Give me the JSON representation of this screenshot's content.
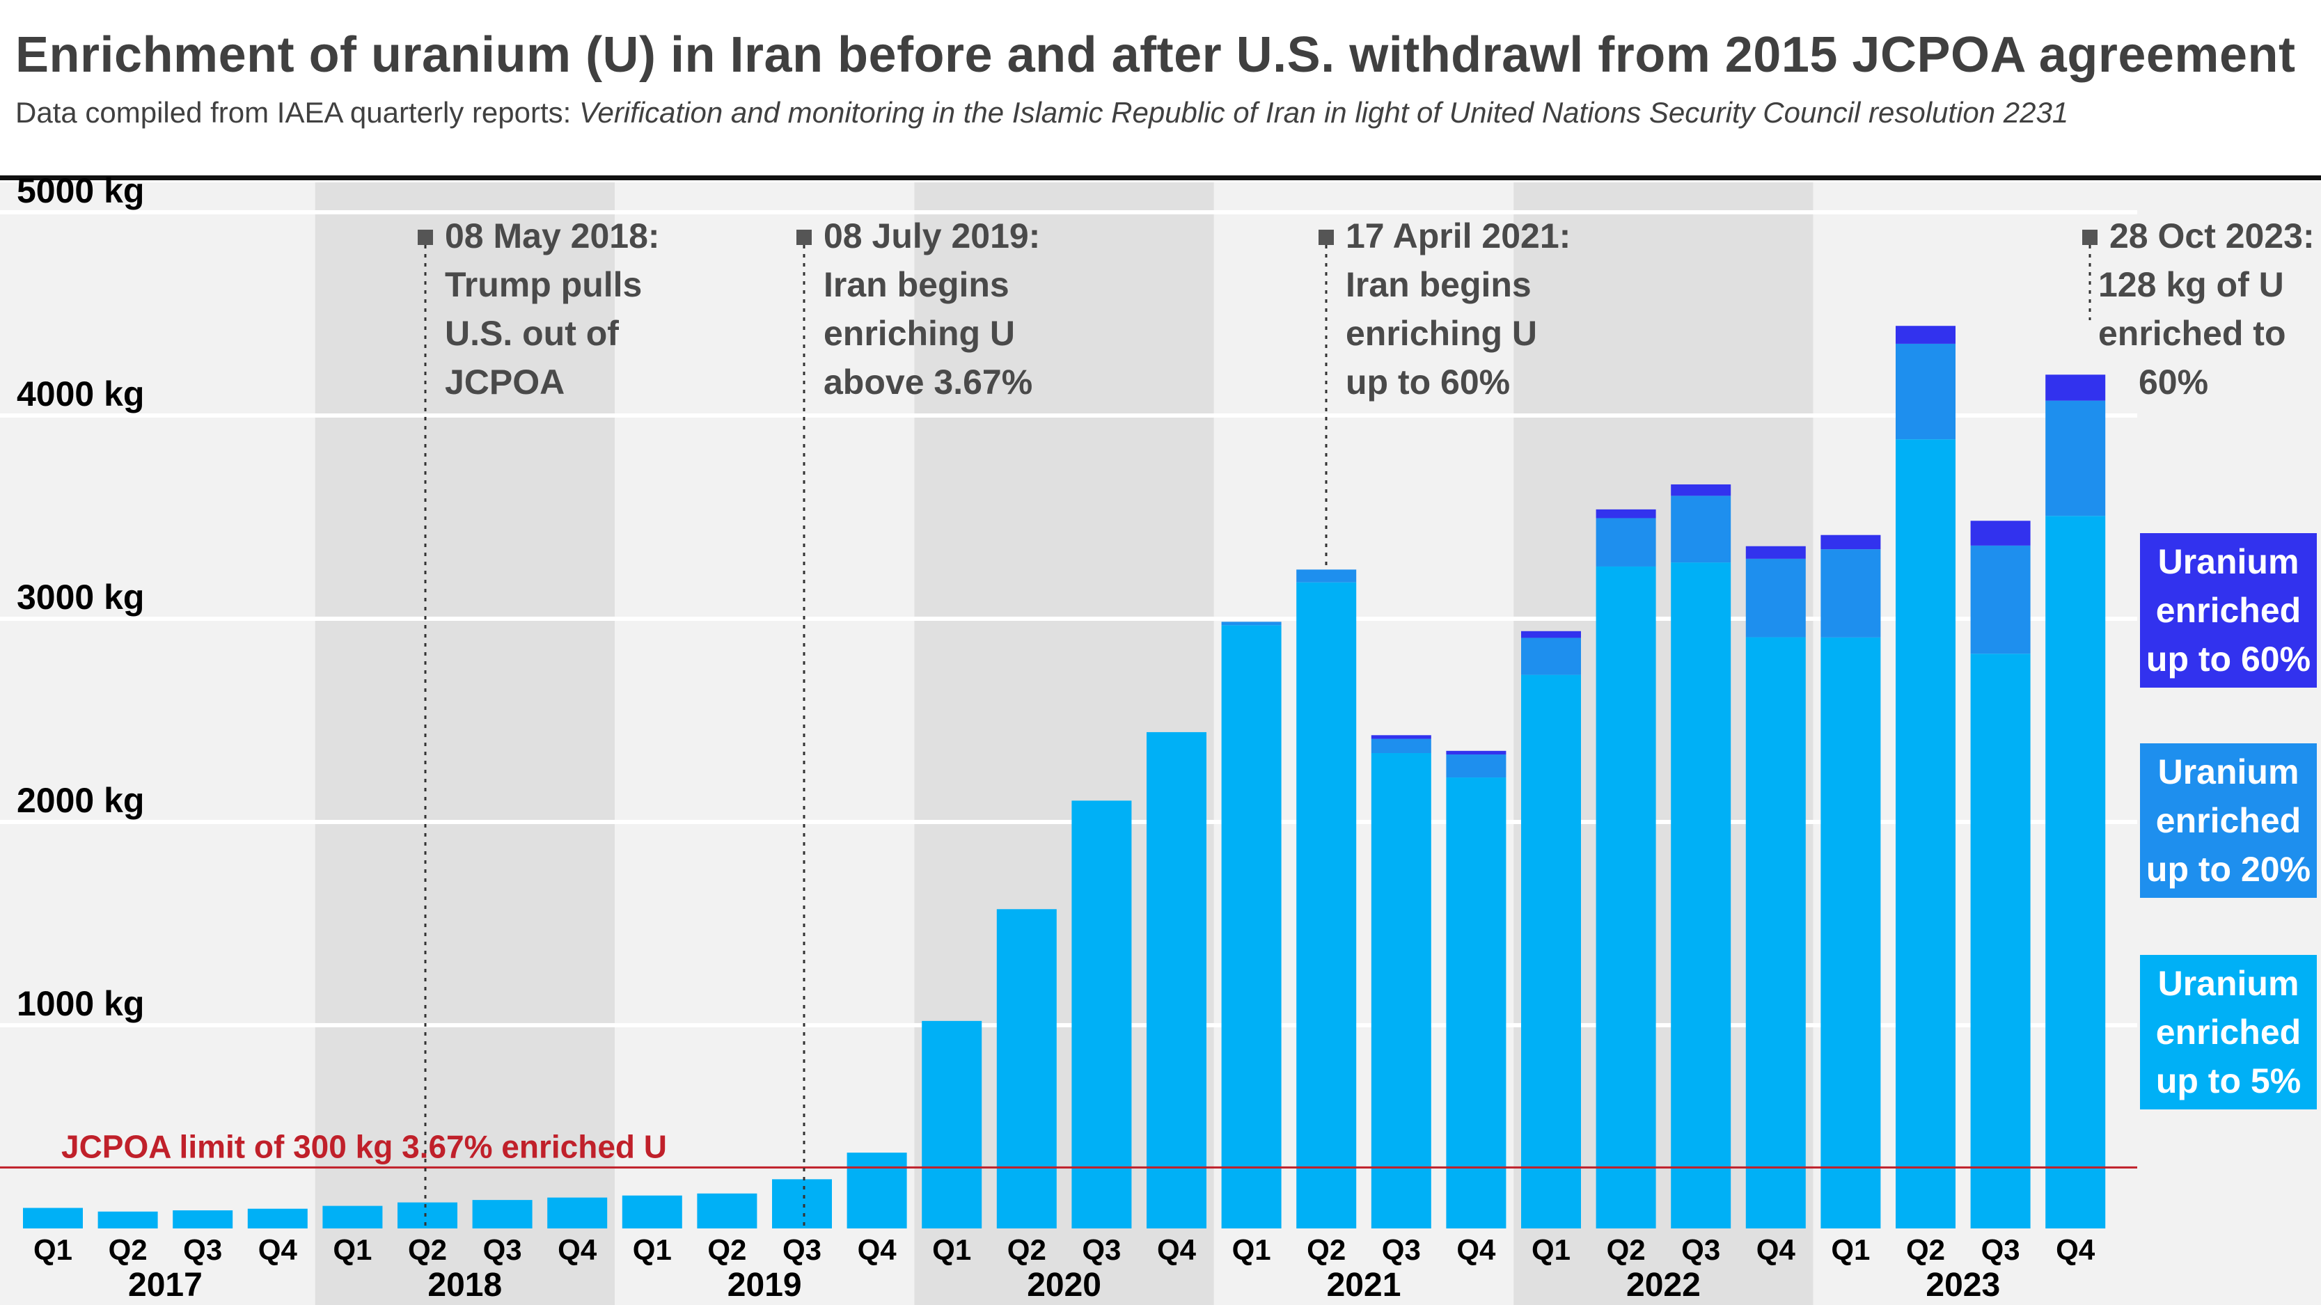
{
  "title": "Enrichment of uranium (U) in Iran before and after U.S. withdrawl from 2015 JCPOA agreement",
  "subtitle_prefix": "Data compiled from IAEA quarterly reports: ",
  "subtitle_italic": "Verification and monitoring in the Islamic Republic of Iran in light of United Nations Security Council resolution 2231",
  "colors": {
    "u5": "#00b0f6",
    "u20": "#1e8fee",
    "u60": "#3232ee",
    "limit": "#c0202a",
    "band_dark": "#e0e0e0",
    "band_light": "#f2f2f2",
    "axis_text": "#000000",
    "annotation_text": "#4a4a4a"
  },
  "legend": [
    {
      "label_lines": [
        "Uranium",
        "enriched",
        "up to 60%"
      ],
      "color": "#3232ee"
    },
    {
      "label_lines": [
        "Uranium",
        "enriched",
        "up to 20%"
      ],
      "color": "#1e8fee"
    },
    {
      "label_lines": [
        "Uranium",
        "enriched",
        "up to 5%"
      ],
      "color": "#00b0f6"
    }
  ],
  "chart_data": {
    "type": "bar",
    "stacked": true,
    "y_tick_labels": [
      "1000 kg",
      "2000 kg",
      "3000 kg",
      "4000 kg",
      "5000 kg"
    ],
    "y_ticks": [
      1000,
      2000,
      3000,
      4000,
      5000
    ],
    "ylim": [
      0,
      5150
    ],
    "grid": true,
    "years": [
      "2017",
      "2018",
      "2019",
      "2020",
      "2021",
      "2022",
      "2023"
    ],
    "categories": [
      "Q1",
      "Q2",
      "Q3",
      "Q4",
      "Q1",
      "Q2",
      "Q3",
      "Q4",
      "Q1",
      "Q2",
      "Q3",
      "Q4",
      "Q1",
      "Q2",
      "Q3",
      "Q4",
      "Q1",
      "Q2",
      "Q3",
      "Q4",
      "Q1",
      "Q2",
      "Q3",
      "Q4",
      "Q1",
      "Q2",
      "Q3",
      "Q4"
    ],
    "series": [
      {
        "name": "Uranium enriched up to 5%",
        "values": [
          101,
          83,
          89,
          97,
          111,
          128,
          140,
          152,
          162,
          172,
          242,
          373,
          1021,
          1571,
          2105,
          2442,
          2968,
          3179,
          2339,
          2219,
          2724,
          3257,
          3277,
          2909,
          2908,
          3883,
          2828,
          3506
        ]
      },
      {
        "name": "Uranium enriched up to 20%",
        "values": [
          0,
          0,
          0,
          0,
          0,
          0,
          0,
          0,
          0,
          0,
          0,
          0,
          0,
          0,
          0,
          0,
          17,
          63,
          70,
          113,
          182,
          238,
          328,
          386,
          434,
          470,
          532,
          567
        ]
      },
      {
        "name": "Uranium enriched up to 60%",
        "values": [
          0,
          0,
          0,
          0,
          0,
          0,
          0,
          0,
          0,
          0,
          0,
          0,
          0,
          0,
          0,
          0,
          0,
          0,
          18,
          18,
          33,
          43,
          56,
          62,
          70,
          88,
          122,
          128
        ]
      }
    ],
    "reference_line": {
      "value": 300,
      "label": "JCPOA limit of 300 kg 3.67% enriched U"
    },
    "annotations": [
      {
        "index": 5,
        "lines": [
          "08 May 2018:",
          "Trump pulls",
          "U.S. out of",
          "JCPOA"
        ],
        "align": "left"
      },
      {
        "index": 10,
        "lines": [
          "08 July 2019:",
          "Iran begins",
          "enriching U",
          "above 3.67%"
        ],
        "align": "left"
      },
      {
        "index": 17,
        "lines": [
          "17 April 2021:",
          "Iran begins",
          "enriching U",
          "up to 60%"
        ],
        "align": "left"
      },
      {
        "index": 27,
        "lines": [
          "28 Oct 2023:",
          "128 kg of U",
          "enriched to",
          "60%"
        ],
        "align": "left"
      }
    ]
  }
}
